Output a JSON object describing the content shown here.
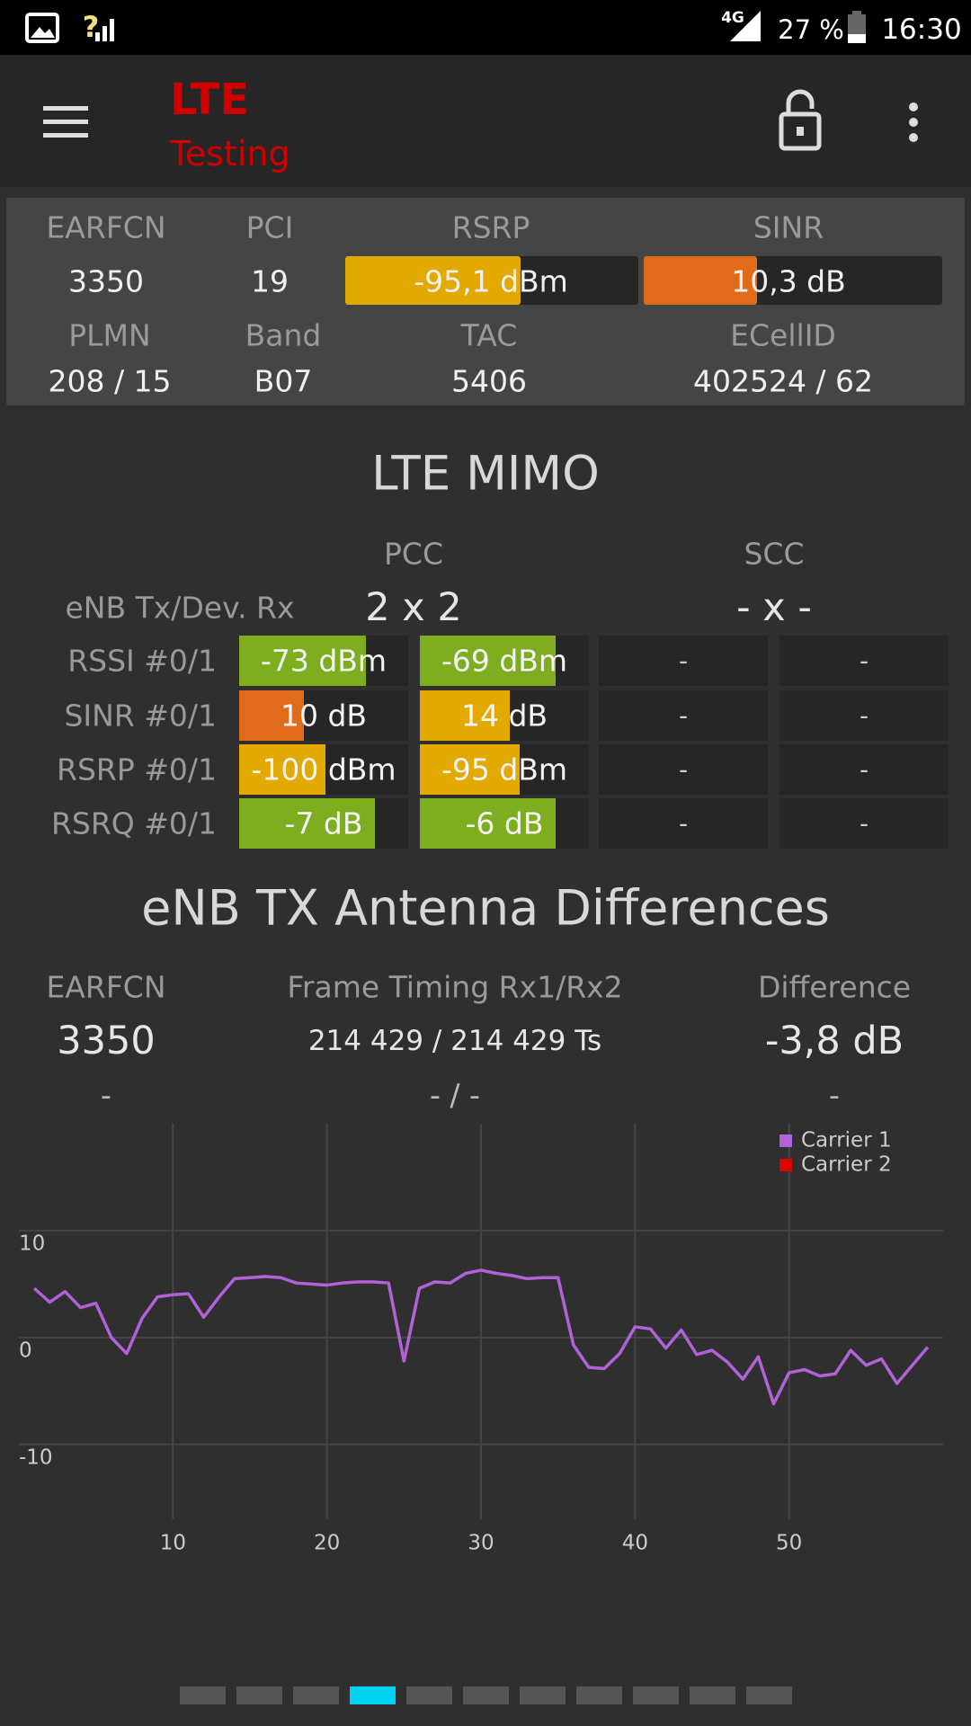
{
  "status_bar": {
    "signal": "?",
    "network": "4G",
    "battery": "27 %",
    "time": "16:30"
  },
  "app_bar": {
    "title": "LTE",
    "subtitle": "Testing"
  },
  "summary": {
    "row1": [
      {
        "label": "EARFCN",
        "value": "3350"
      },
      {
        "label": "PCI",
        "value": "19"
      },
      {
        "label": "RSRP",
        "value": "-95,1 dBm"
      },
      {
        "label": "SINR",
        "value": "10,3 dB"
      }
    ],
    "row2": [
      {
        "label": "PLMN",
        "value": "208 / 15"
      },
      {
        "label": "Band",
        "value": "B07"
      },
      {
        "label": "TAC",
        "value": "5406"
      },
      {
        "label": "ECellID",
        "value": "402524 / 62"
      }
    ]
  },
  "mimo": {
    "title": "LTE MIMO",
    "columns": [
      "PCC",
      "SCC"
    ],
    "config": {
      "label": "eNB Tx/Dev. Rx",
      "values": [
        "2 x 2",
        "- x -"
      ]
    },
    "rows": [
      {
        "label": "RSSI #0/1",
        "cells": [
          "-73 dBm",
          "-69 dBm",
          "-",
          "-"
        ]
      },
      {
        "label": "SINR #0/1",
        "cells": [
          "10 dB",
          "14 dB",
          "-",
          "-"
        ]
      },
      {
        "label": "RSRP #0/1",
        "cells": [
          "-100 dBm",
          "-95 dBm",
          "-",
          "-"
        ]
      },
      {
        "label": "RSRQ #0/1",
        "cells": [
          "-7 dB",
          "-6 dB",
          "-",
          "-"
        ]
      }
    ]
  },
  "antenna": {
    "title": "eNB TX Antenna Differences",
    "columns": [
      {
        "label": "EARFCN",
        "values": [
          "3350",
          "-"
        ]
      },
      {
        "label": "Frame Timing Rx1/Rx2",
        "values": [
          "214 429 / 214 429 Ts",
          "- / -"
        ]
      },
      {
        "label": "Difference",
        "values": [
          "-3,8 dB",
          "-"
        ]
      }
    ]
  },
  "chart_data": {
    "type": "line",
    "x": [
      1,
      2,
      3,
      4,
      5,
      6,
      7,
      8,
      9,
      10,
      11,
      12,
      13,
      14,
      15,
      16,
      17,
      18,
      19,
      20,
      21,
      22,
      23,
      24,
      25,
      26,
      27,
      28,
      29,
      30,
      31,
      32,
      33,
      34,
      35,
      36,
      37,
      38,
      39,
      40,
      41,
      42,
      43,
      44,
      45,
      46,
      47,
      48,
      49,
      50,
      51,
      52,
      53,
      54,
      55,
      56,
      57,
      58,
      59
    ],
    "series": [
      {
        "name": "Carrier 1",
        "color": "#b262d8",
        "values": [
          4.6,
          3.3,
          4.3,
          2.8,
          3.2,
          0,
          -1.5,
          1.8,
          3.8,
          4.0,
          4.1,
          1.9,
          3.8,
          5.5,
          5.6,
          5.7,
          5.6,
          5.1,
          5.0,
          4.9,
          5.1,
          5.2,
          5.2,
          5.1,
          -2.2,
          4.6,
          5.2,
          5.1,
          6.0,
          6.3,
          6.0,
          5.8,
          5.5,
          5.6,
          5.6,
          -0.7,
          -2.8,
          -2.9,
          -1.5,
          1.0,
          0.8,
          -1.0,
          0.7,
          -1.6,
          -1.2,
          -2.3,
          -3.9,
          -1.8,
          -6.2,
          -3.3,
          -3.0,
          -3.6,
          -3.4,
          -1.2,
          -2.6,
          -2.0,
          -4.3,
          -2.6,
          -0.9
        ]
      },
      {
        "name": "Carrier 2",
        "color": "#e00000",
        "values": [
          null,
          null,
          null,
          null,
          null,
          null,
          null,
          null,
          null,
          null,
          null,
          null,
          null,
          null,
          null,
          null,
          null,
          null,
          null,
          null,
          null,
          null,
          null,
          null,
          null,
          null,
          null,
          null,
          null,
          null,
          null,
          null,
          null,
          null,
          null,
          null,
          null,
          null,
          null,
          null,
          null,
          null,
          null,
          null,
          null,
          null,
          null,
          null,
          null,
          null,
          null,
          null,
          null,
          null,
          null,
          null,
          null,
          null,
          null
        ]
      }
    ],
    "xlim": [
      0,
      60
    ],
    "xticks": [
      10,
      20,
      30,
      40,
      50
    ],
    "ylim": [
      -17,
      20
    ],
    "yticks": [
      -10,
      0,
      10
    ],
    "grid": true,
    "legend": "top-right"
  }
}
